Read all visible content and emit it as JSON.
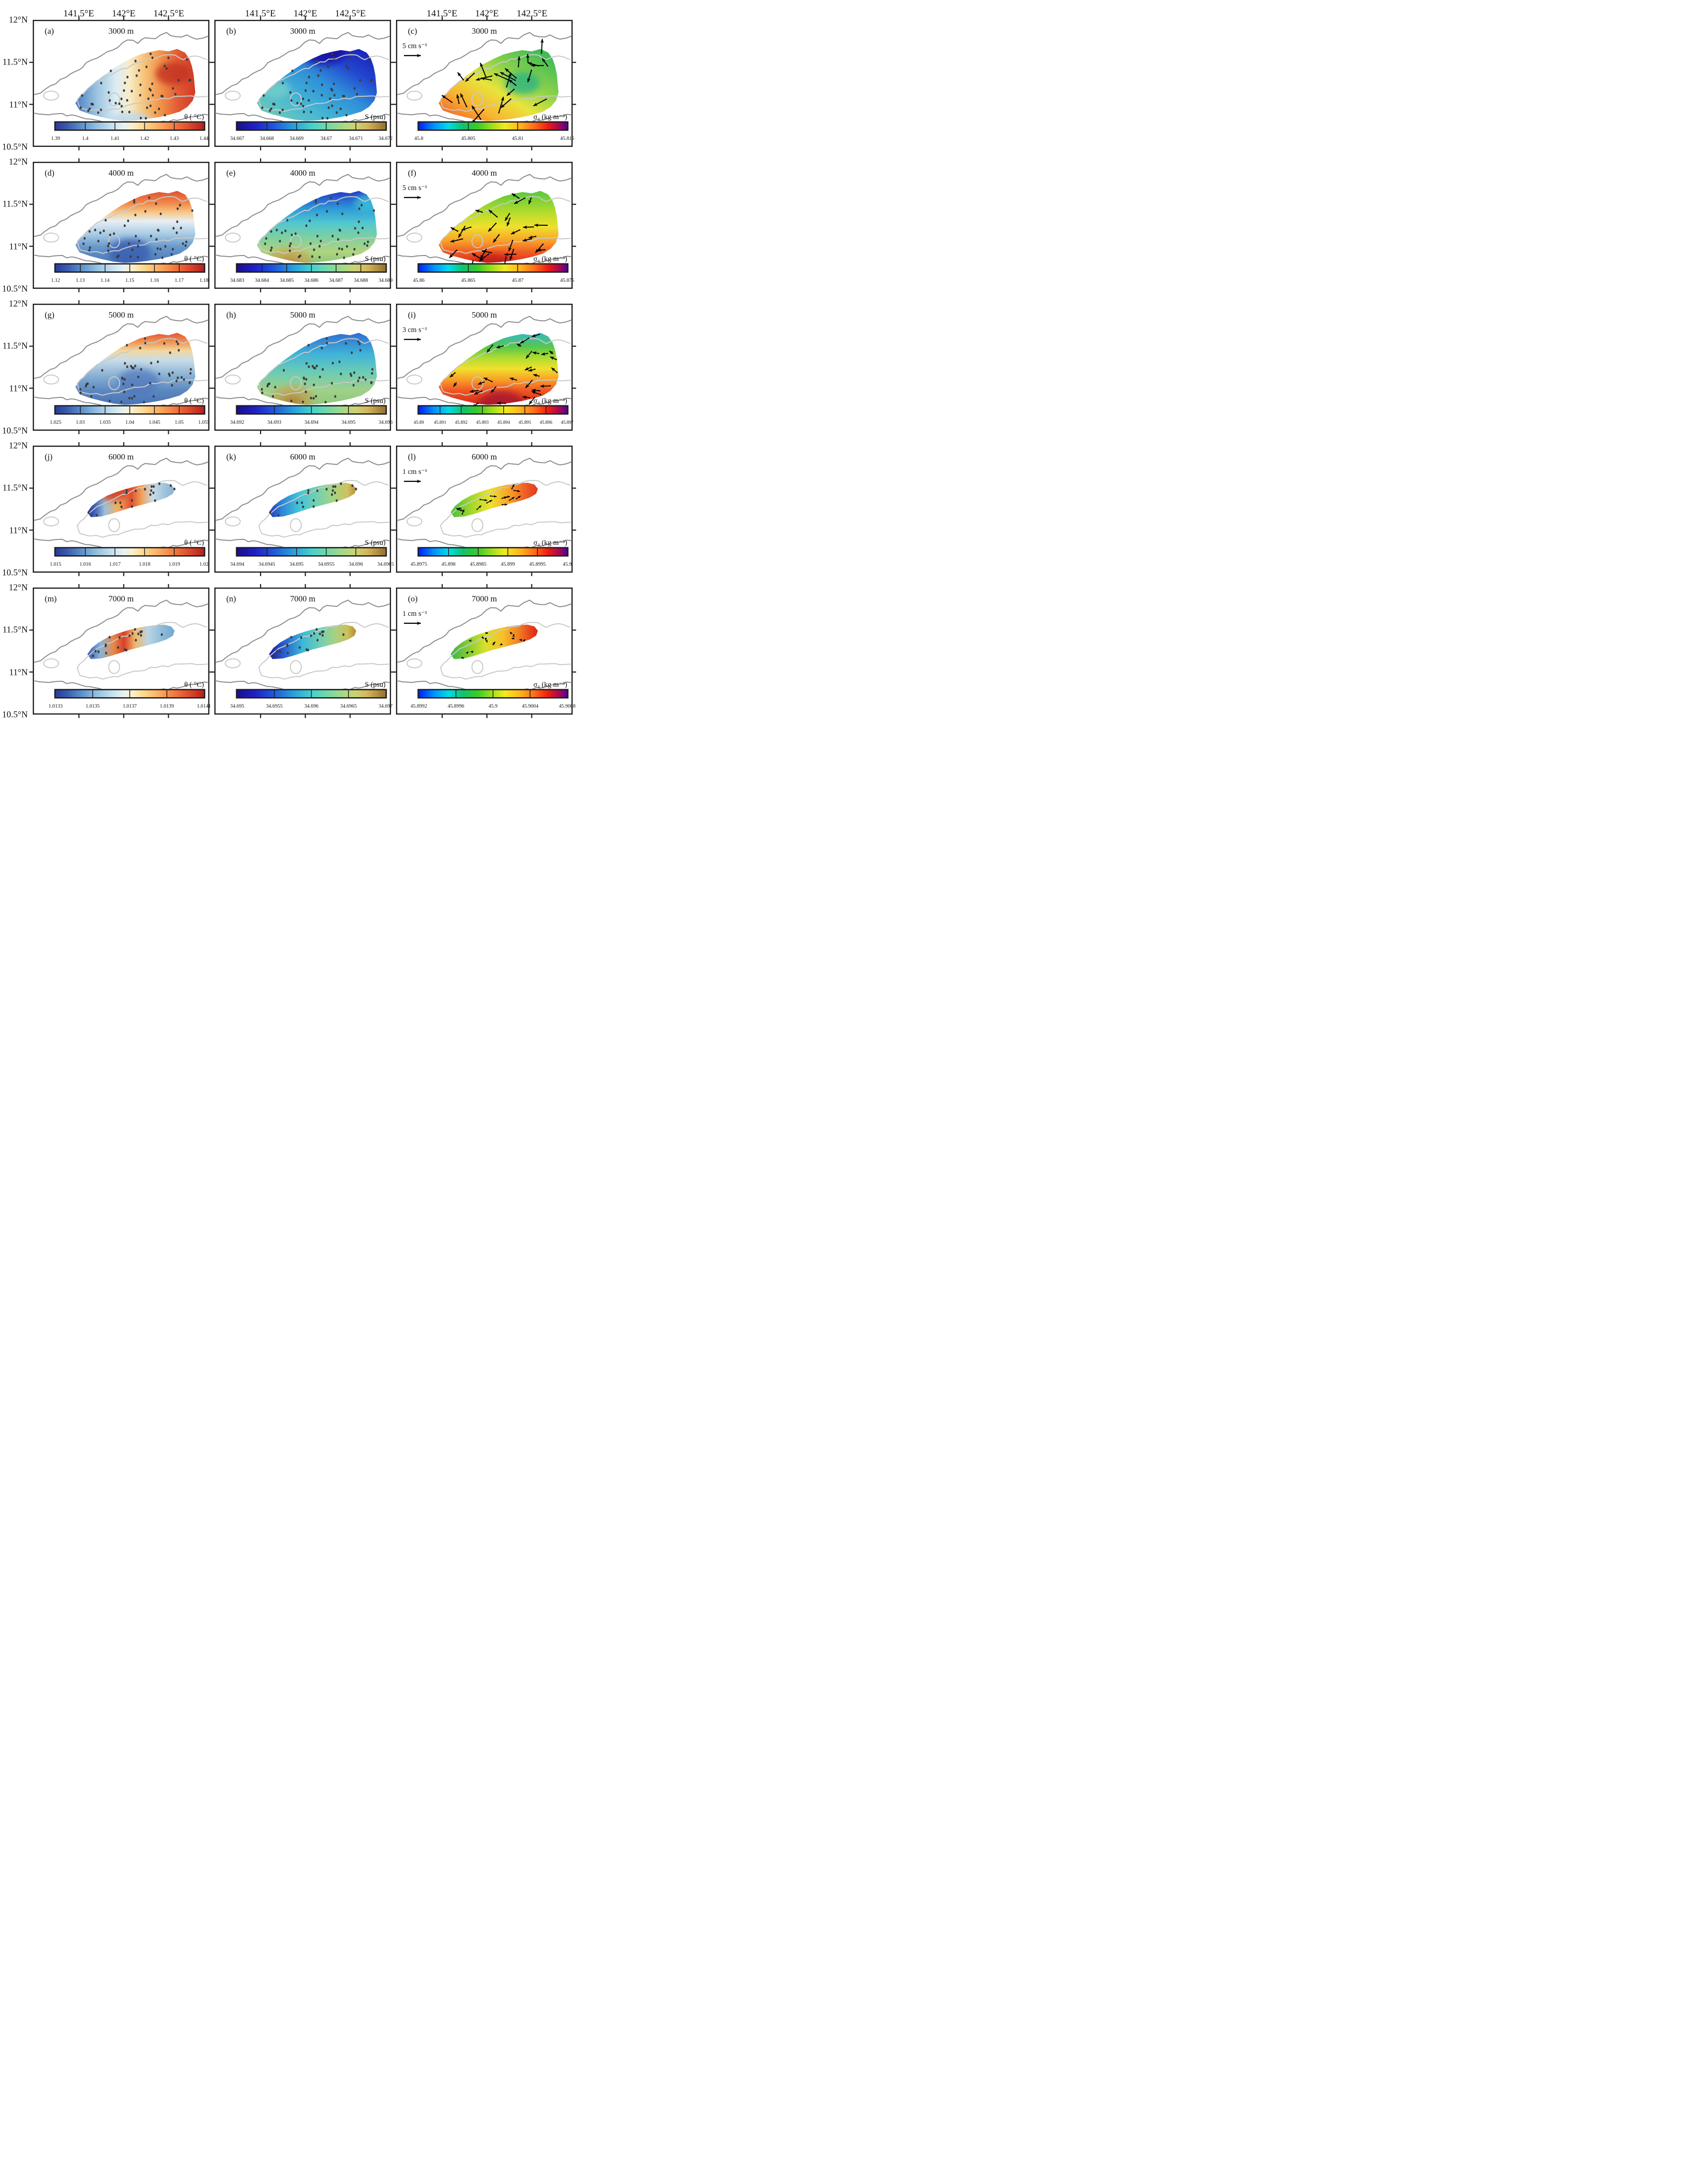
{
  "figure": {
    "lon_tick_labels": [
      "141.5°E",
      "142°E",
      "142.5°E"
    ],
    "lat_tick_labels": [
      "12°N",
      "11.5°N",
      "11°N",
      "10.5°N"
    ]
  },
  "chart_data": {
    "type": "heatmap",
    "description": "5x3 grid of geographic contour maps of deep-ocean properties at five depths; columns are potential temperature, salinity and potential density anomaly; third column includes velocity vectors.",
    "grid": {
      "rows": 5,
      "cols": 3
    },
    "x_axis": {
      "label": "Longitude",
      "ticks": [
        "141.5°E",
        "142°E",
        "142.5°E"
      ]
    },
    "y_axis": {
      "label": "Latitude",
      "ticks": [
        "12°N",
        "11.5°N",
        "11°N",
        "10.5°N"
      ]
    },
    "depths": [
      "3000 m",
      "4000 m",
      "5000 m",
      "6000 m",
      "7000 m"
    ],
    "variables": [
      {
        "key": "theta",
        "name": "potential temperature",
        "unit_label": "θ ( °C)",
        "colormap": "blue-white-red"
      },
      {
        "key": "salinity",
        "name": "salinity",
        "unit_label": "S (psu)",
        "colormap": "navy-cyan-green-tan"
      },
      {
        "key": "sigma4",
        "name": "potential density anomaly",
        "unit_label": "σ₄ (kg m⁻³)",
        "colormap": "jet-purple"
      }
    ],
    "panels": [
      {
        "id": "a",
        "label": "(a)",
        "depth_label": "3000 m",
        "variable": "theta",
        "unit_label": "θ ( °C)",
        "colorbar": {
          "ticks": [
            "1.39",
            "1.4",
            "1.41",
            "1.42",
            "1.43",
            "1.44"
          ]
        }
      },
      {
        "id": "b",
        "label": "(b)",
        "depth_label": "3000 m",
        "variable": "salinity",
        "unit_label": "S (psu)",
        "colorbar": {
          "ticks": [
            "34.667",
            "34.668",
            "34.669",
            "34.67",
            "34.671",
            "34.672"
          ]
        }
      },
      {
        "id": "c",
        "label": "(c)",
        "depth_label": "3000 m",
        "variable": "sigma4",
        "unit_label": "σ₄ (kg m⁻³)",
        "colorbar": {
          "ticks": [
            "45.8",
            "45.805",
            "45.81",
            "45.815"
          ]
        },
        "scale_label": "5 cm s⁻¹"
      },
      {
        "id": "d",
        "label": "(d)",
        "depth_label": "4000 m",
        "variable": "theta",
        "unit_label": "θ ( °C)",
        "colorbar": {
          "ticks": [
            "1.12",
            "1.13",
            "1.14",
            "1.15",
            "1.16",
            "1.17",
            "1.18"
          ]
        }
      },
      {
        "id": "e",
        "label": "(e)",
        "depth_label": "4000 m",
        "variable": "salinity",
        "unit_label": "S (psu)",
        "colorbar": {
          "ticks": [
            "34.683",
            "34.684",
            "34.685",
            "34.686",
            "34.687",
            "34.688",
            "34.689"
          ]
        }
      },
      {
        "id": "f",
        "label": "(f)",
        "depth_label": "4000 m",
        "variable": "sigma4",
        "unit_label": "σ₄ (kg m⁻³)",
        "colorbar": {
          "ticks": [
            "45.86",
            "45.865",
            "45.87",
            "45.875"
          ]
        },
        "scale_label": "5 cm s⁻¹"
      },
      {
        "id": "g",
        "label": "(g)",
        "depth_label": "5000 m",
        "variable": "theta",
        "unit_label": "θ ( °C)",
        "colorbar": {
          "ticks": [
            "1.025",
            "1.03",
            "1.035",
            "1.04",
            "1.045",
            "1.05",
            "1.055"
          ]
        }
      },
      {
        "id": "h",
        "label": "(h)",
        "depth_label": "5000 m",
        "variable": "salinity",
        "unit_label": "S (psu)",
        "colorbar": {
          "ticks": [
            "34.692",
            "34.693",
            "34.694",
            "34.695",
            "34.696"
          ]
        }
      },
      {
        "id": "i",
        "label": "(i)",
        "depth_label": "5000 m",
        "variable": "sigma4",
        "unit_label": "σ₄ (kg m⁻³)",
        "colorbar": {
          "ticks": [
            "45.89",
            "45.891",
            "45.892",
            "45.893",
            "45.894",
            "45.895",
            "45.896",
            "45.897"
          ]
        },
        "scale_label": "3 cm s⁻¹"
      },
      {
        "id": "j",
        "label": "(j)",
        "depth_label": "6000 m",
        "variable": "theta",
        "unit_label": "θ ( °C)",
        "colorbar": {
          "ticks": [
            "1.015",
            "1.016",
            "1.017",
            "1.018",
            "1.019",
            "1.02"
          ]
        }
      },
      {
        "id": "k",
        "label": "(k)",
        "depth_label": "6000 m",
        "variable": "salinity",
        "unit_label": "S (psu)",
        "colorbar": {
          "ticks": [
            "34.694",
            "34.6945",
            "34.695",
            "34.6955",
            "34.696",
            "34.6965"
          ]
        }
      },
      {
        "id": "l",
        "label": "(l)",
        "depth_label": "6000 m",
        "variable": "sigma4",
        "unit_label": "σ₄ (kg m⁻³)",
        "colorbar": {
          "ticks": [
            "45.8975",
            "45.898",
            "45.8985",
            "45.899",
            "45.8995",
            "45.9"
          ]
        },
        "scale_label": "1 cm s⁻¹"
      },
      {
        "id": "m",
        "label": "(m)",
        "depth_label": "7000 m",
        "variable": "theta",
        "unit_label": "θ ( °C)",
        "colorbar": {
          "ticks": [
            "1.0133",
            "1.0135",
            "1.0137",
            "1.0139",
            "1.0141"
          ]
        }
      },
      {
        "id": "n",
        "label": "(n)",
        "depth_label": "7000 m",
        "variable": "salinity",
        "unit_label": "S (psu)",
        "colorbar": {
          "ticks": [
            "34.695",
            "34.6955",
            "34.696",
            "34.6965",
            "34.697"
          ]
        }
      },
      {
        "id": "o",
        "label": "(o)",
        "depth_label": "7000 m",
        "variable": "sigma4",
        "unit_label": "σ₄ (kg m⁻³)",
        "colorbar": {
          "ticks": [
            "45.8992",
            "45.8996",
            "45.9",
            "45.9004",
            "45.9008"
          ]
        },
        "scale_label": "1 cm s⁻¹"
      }
    ]
  }
}
